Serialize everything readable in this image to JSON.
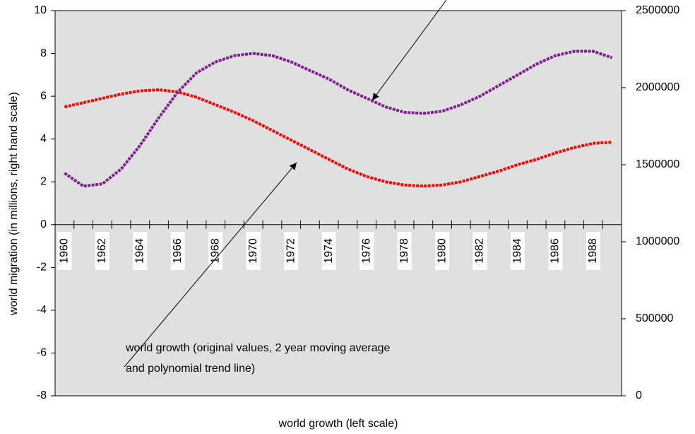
{
  "chart_data": {
    "type": "line",
    "categories": [
      "1960",
      null,
      "1962",
      null,
      "1964",
      null,
      "1966",
      null,
      "1968",
      null,
      "1970",
      null,
      "1972",
      null,
      "1974",
      null,
      "1976",
      null,
      "1978",
      null,
      "1980",
      null,
      "1982",
      null,
      "1984",
      null,
      "1986",
      null,
      "1988",
      null
    ],
    "series": [
      {
        "color": "#ff0000",
        "values": [
          5.5,
          5.7,
          5.9,
          6.1,
          6.25,
          6.3,
          6.2,
          5.95,
          5.6,
          5.25,
          4.85,
          4.4,
          3.95,
          3.5,
          3.05,
          2.6,
          2.25,
          2.0,
          1.85,
          1.8,
          1.85,
          2.0,
          2.25,
          2.5,
          2.8,
          3.05,
          3.35,
          3.6,
          3.8,
          3.85
        ]
      },
      {
        "color": "#7f1f8f",
        "axis": "y2",
        "values": [
          1445000,
          1361000,
          1375000,
          1472000,
          1625000,
          1806000,
          1972000,
          2097000,
          2167000,
          2208000,
          2222000,
          2208000,
          2167000,
          2111000,
          2056000,
          1986000,
          1931000,
          1875000,
          1840000,
          1833000,
          1847000,
          1889000,
          1944000,
          2014000,
          2083000,
          2153000,
          2208000,
          2236000,
          2236000,
          2194000
        ]
      }
    ],
    "ylabel": "world migration (in millions, right hand scale)",
    "xlabel": "world growth (left scale)",
    "annotation": [
      "world growth (original values, 2 year moving average",
      "and polynomial trend line)"
    ],
    "ylim": [
      -8,
      10
    ],
    "yticks": [
      -8,
      -6,
      -4,
      -2,
      0,
      2,
      4,
      6,
      8,
      10
    ],
    "y2lim": [
      0,
      2500000
    ],
    "y2ticks": [
      0,
      500000,
      1000000,
      1500000,
      2000000,
      2500000
    ]
  }
}
